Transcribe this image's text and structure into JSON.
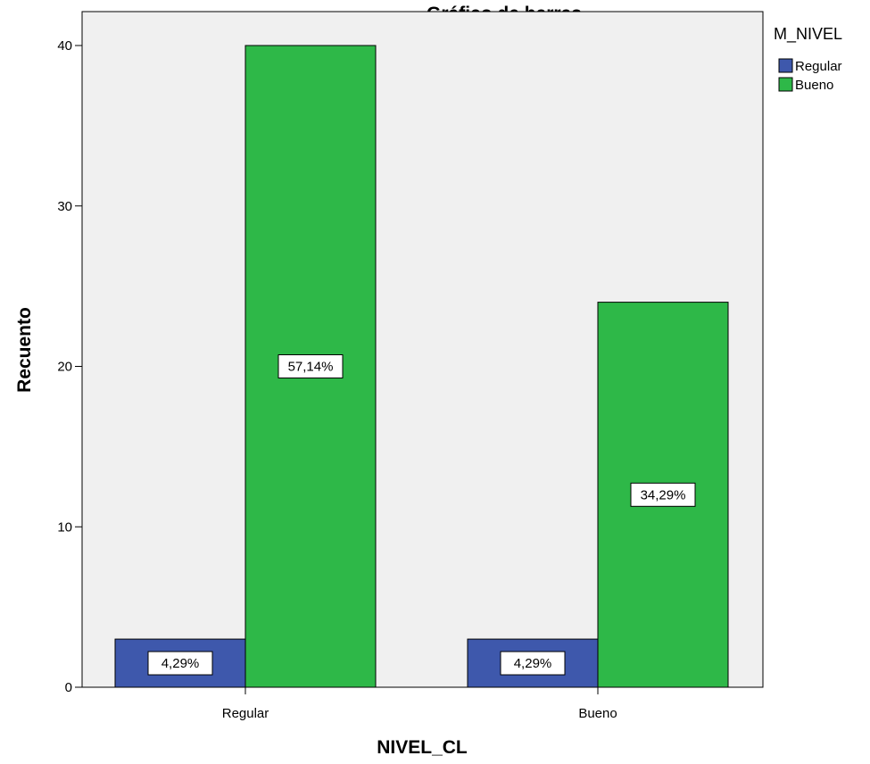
{
  "chart_data": {
    "type": "bar",
    "title": "Gráfico de barras",
    "xlabel": "NIVEL_CL",
    "ylabel": "Recuento",
    "categories": [
      "Regular",
      "Bueno"
    ],
    "ylim": [
      0,
      44
    ],
    "yticks": [
      0,
      10,
      20,
      30,
      40
    ],
    "legend": {
      "title": "M_NIVEL",
      "placement": "right"
    },
    "series": [
      {
        "name": "Regular",
        "color": "#3E58AC",
        "values": [
          3,
          3
        ],
        "labels": [
          "4,29%",
          "4,29%"
        ]
      },
      {
        "name": "Bueno",
        "color": "#2EB848",
        "values": [
          40,
          24
        ],
        "labels": [
          "57,14%",
          "34,29%"
        ]
      }
    ],
    "plot_background": "#F0F0F0",
    "grid": false
  }
}
